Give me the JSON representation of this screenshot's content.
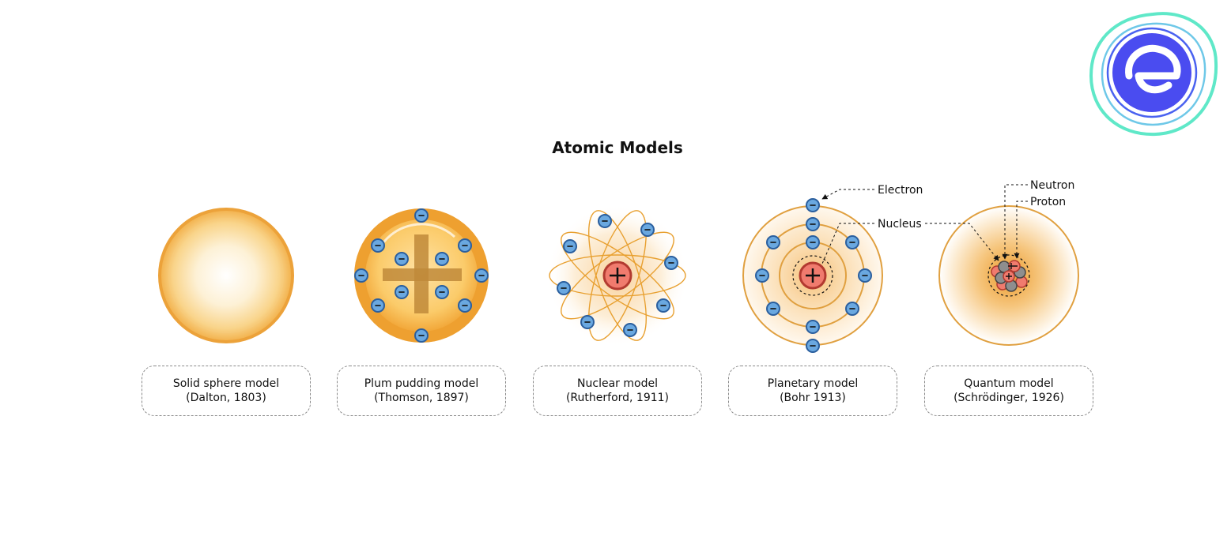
{
  "title": "Atomic Models",
  "logo": {
    "icon": "e-brand-logo"
  },
  "models": [
    {
      "id": "dalton",
      "name": "Solid sphere model",
      "credit": "(Dalton, 1803)"
    },
    {
      "id": "thomson",
      "name": "Plum pudding model",
      "credit": "(Thomson, 1897)"
    },
    {
      "id": "rutherford",
      "name": "Nuclear model",
      "credit": "(Rutherford, 1911)"
    },
    {
      "id": "bohr",
      "name": "Planetary model",
      "credit": "(Bohr 1913)"
    },
    {
      "id": "schrodinger",
      "name": "Quantum model",
      "credit": "(Schrödinger, 1926)"
    }
  ],
  "annotations": {
    "electron": "Electron",
    "nucleus": "Nucleus",
    "neutron": "Neutron",
    "proton": "Proton"
  },
  "colors": {
    "orange": "#e8a030",
    "orange_light": "#fbd98a",
    "electron_fill": "#6aa8e0",
    "electron_stroke": "#2b5f9e",
    "proton_fill": "#f07b6e",
    "proton_stroke": "#b23a30",
    "neutron_fill": "#8a8a8a",
    "logo_blue": "#4a4cf0",
    "logo_teal": "#5fe8c8"
  }
}
